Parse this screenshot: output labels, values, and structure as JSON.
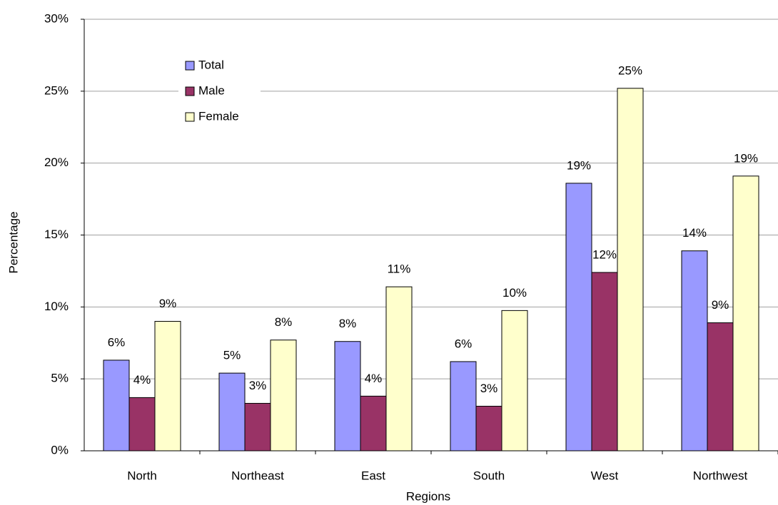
{
  "chart_data": {
    "type": "bar",
    "x_label": "Regions",
    "y_label": "Percentage",
    "categories": [
      "North",
      "Northeast",
      "East",
      "South",
      "West",
      "Northwest"
    ],
    "series": [
      {
        "name": "Total",
        "color": "#9999ff",
        "values": [
          6.3,
          5.4,
          7.6,
          6.2,
          18.6,
          13.9
        ],
        "value_labels": [
          "6%",
          "5%",
          "8%",
          "6%",
          "19%",
          "14%"
        ]
      },
      {
        "name": "Male",
        "color": "#993366",
        "values": [
          3.7,
          3.3,
          3.8,
          3.1,
          12.4,
          8.9
        ],
        "value_labels": [
          "4%",
          "3%",
          "4%",
          "3%",
          "12%",
          "9%"
        ]
      },
      {
        "name": "Female",
        "color": "#ffffcc",
        "values": [
          9.0,
          7.7,
          11.4,
          9.75,
          25.2,
          19.1
        ],
        "value_labels": [
          "9%",
          "8%",
          "11%",
          "10%",
          "25%",
          "19%"
        ]
      }
    ],
    "ylim": [
      0,
      30
    ],
    "yticks": [
      {
        "value": 0,
        "label": "0%"
      },
      {
        "value": 5,
        "label": "5%"
      },
      {
        "value": 10,
        "label": "10%"
      },
      {
        "value": 15,
        "label": "15%"
      },
      {
        "value": 20,
        "label": "20%"
      },
      {
        "value": 25,
        "label": "25%"
      },
      {
        "value": 30,
        "label": "30%"
      }
    ],
    "grid": true,
    "legend": "upper-left"
  }
}
